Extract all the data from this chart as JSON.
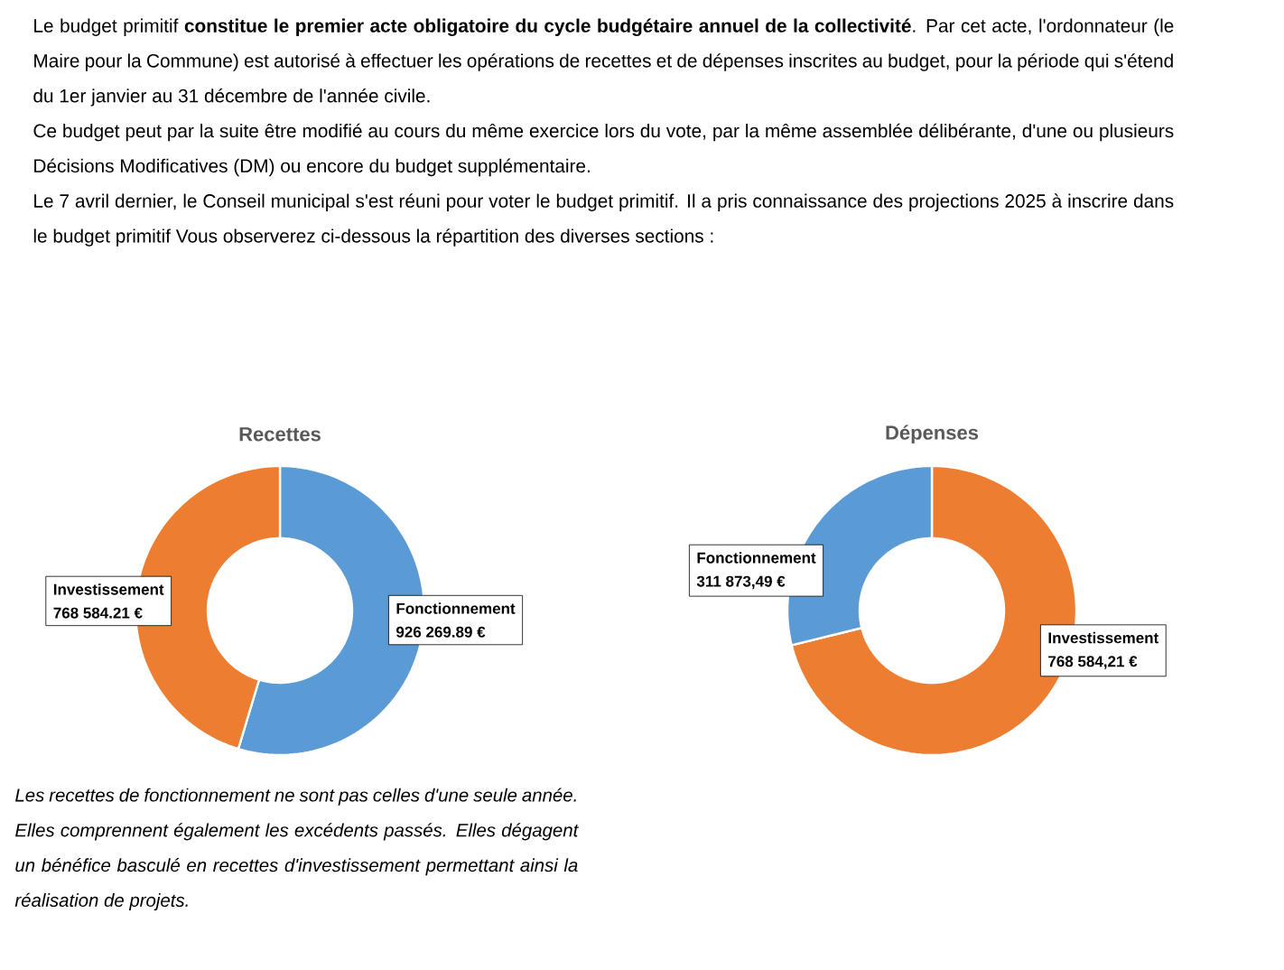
{
  "chart_data": [
    {
      "type": "donut",
      "title": "Recettes",
      "categories": [
        "Fonctionnement",
        "Investissement"
      ],
      "values": [
        926269.89,
        768584.21
      ],
      "value_labels": [
        "926 269.89 €",
        "768 584.21 €"
      ],
      "colors": [
        "#5b9bd5",
        "#ed7d31"
      ],
      "annotations": [
        "Le budget primitif **constitue le premier acte obligatoire du cycle budgétaire annuel de la collectivité**. Par cet acte, l'ordonnateur (le Maire pour la Commune) est autorisé à effectuer les opérations de recettes et de dépenses inscrites au budget, pour la période qui s'étend du 1er janvier au 31 décembre de l'année civile.",
        "Ce budget peut par la suite être modifié au cours du même exercice lors du vote, par la même assemblée délibérante, d'une ou plusieurs Décisions Modificatives (DM) ou encore du budget supplémentaire.",
        "Le 7 avril dernier, le Conseil municipal s'est réuni pour voter le budget primitif. Il a pris connaissance des projections 2025 à inscrire dans le budget primitif Vous observerez ci-dessous la répartition des diverses sections :",
        "Les recettes de fonctionnement ne sont pas celles d'une seule année. Elles comprennent également les excédents passés. Elles dégagent un bénéfice basculé en recettes d'investissement permettant ainsi la réalisation de projets."
      ]
    },
    {
      "type": "donut",
      "title": "Dépenses",
      "categories": [
        "Investissement",
        "Fonctionnement"
      ],
      "values": [
        768584.21,
        311873.49
      ],
      "value_labels": [
        "768 584,21 €",
        "311 873,49 €"
      ],
      "colors": [
        "#ed7d31",
        "#5b9bd5"
      ]
    }
  ]
}
